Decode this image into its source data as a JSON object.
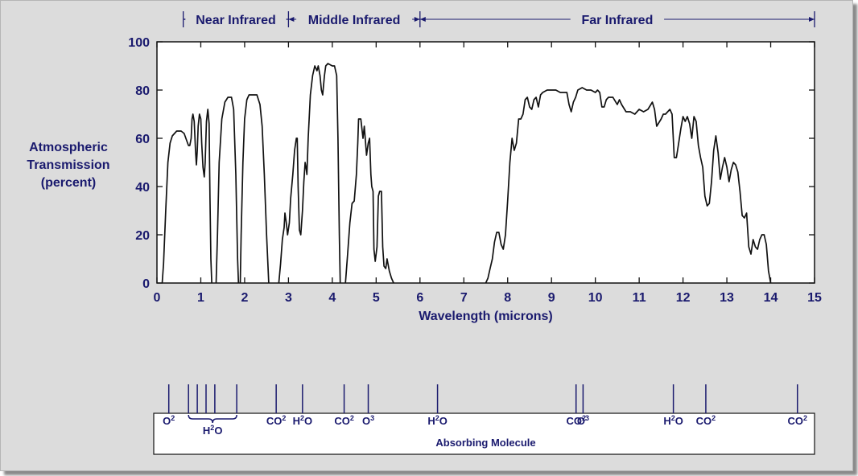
{
  "chart_data": {
    "type": "line",
    "xlabel": "Wavelength (microns)",
    "ylabel_lines": [
      "Atmospheric",
      "Transmission",
      "(percent)"
    ],
    "xlim": [
      0,
      15
    ],
    "ylim": [
      0,
      100
    ],
    "xticks": [
      "0",
      "1",
      "2",
      "3",
      "4",
      "5",
      "6",
      "7",
      "8",
      "9",
      "10",
      "11",
      "12",
      "13",
      "14",
      "15"
    ],
    "yticks": [
      "0",
      "20",
      "40",
      "60",
      "80",
      "100"
    ],
    "grid": false,
    "regions": [
      {
        "label": "Near Infrared",
        "from": 0.6,
        "to": 3.0
      },
      {
        "label": "Middle Infrared",
        "from": 3.0,
        "to": 6.0
      },
      {
        "label": "Far Infrared",
        "from": 6.0,
        "to": 15.0
      }
    ],
    "series": [
      {
        "segments": [
          [
            [
              0.12,
              0
            ],
            [
              0.15,
              8
            ],
            [
              0.2,
              30
            ],
            [
              0.25,
              50
            ],
            [
              0.3,
              58
            ],
            [
              0.35,
              61
            ],
            [
              0.45,
              63
            ],
            [
              0.55,
              63
            ],
            [
              0.62,
              62
            ],
            [
              0.68,
              59
            ],
            [
              0.72,
              57
            ],
            [
              0.75,
              57
            ],
            [
              0.78,
              60
            ],
            [
              0.8,
              68
            ],
            [
              0.82,
              70
            ],
            [
              0.85,
              67
            ],
            [
              0.88,
              55
            ],
            [
              0.9,
              49
            ],
            [
              0.92,
              55
            ],
            [
              0.94,
              65
            ],
            [
              0.97,
              70
            ],
            [
              1.0,
              68
            ],
            [
              1.02,
              58
            ],
            [
              1.05,
              48
            ],
            [
              1.08,
              44
            ],
            [
              1.1,
              50
            ],
            [
              1.13,
              67
            ],
            [
              1.16,
              72
            ],
            [
              1.19,
              66
            ],
            [
              1.21,
              35
            ],
            [
              1.23,
              10
            ],
            [
              1.25,
              0
            ]
          ],
          [
            [
              1.35,
              0
            ],
            [
              1.38,
              20
            ],
            [
              1.42,
              50
            ],
            [
              1.48,
              68
            ],
            [
              1.55,
              75
            ],
            [
              1.62,
              77
            ],
            [
              1.7,
              77
            ],
            [
              1.75,
              72
            ],
            [
              1.8,
              45
            ],
            [
              1.84,
              10
            ],
            [
              1.86,
              0
            ]
          ],
          [
            [
              1.9,
              0
            ],
            [
              1.92,
              20
            ],
            [
              1.96,
              50
            ],
            [
              2.0,
              68
            ],
            [
              2.05,
              76
            ],
            [
              2.1,
              78
            ],
            [
              2.2,
              78
            ],
            [
              2.28,
              78
            ],
            [
              2.35,
              74
            ],
            [
              2.4,
              65
            ],
            [
              2.45,
              45
            ],
            [
              2.5,
              20
            ],
            [
              2.55,
              0
            ]
          ],
          [
            [
              2.78,
              0
            ],
            [
              2.82,
              8
            ],
            [
              2.86,
              18
            ],
            [
              2.9,
              23
            ],
            [
              2.92,
              29
            ],
            [
              2.95,
              25
            ],
            [
              2.98,
              20
            ],
            [
              3.02,
              25
            ],
            [
              3.05,
              35
            ],
            [
              3.1,
              45
            ],
            [
              3.14,
              55
            ],
            [
              3.18,
              60
            ],
            [
              3.2,
              60
            ],
            [
              3.22,
              40
            ],
            [
              3.25,
              22
            ],
            [
              3.28,
              20
            ],
            [
              3.32,
              30
            ],
            [
              3.35,
              42
            ],
            [
              3.38,
              50
            ],
            [
              3.4,
              48
            ],
            [
              3.42,
              45
            ],
            [
              3.45,
              60
            ],
            [
              3.5,
              78
            ],
            [
              3.55,
              86
            ],
            [
              3.6,
              90
            ],
            [
              3.65,
              88
            ],
            [
              3.68,
              90
            ],
            [
              3.72,
              86
            ],
            [
              3.75,
              80
            ],
            [
              3.78,
              78
            ],
            [
              3.82,
              86
            ],
            [
              3.85,
              90
            ],
            [
              3.9,
              91
            ],
            [
              4.0,
              90
            ],
            [
              4.05,
              90
            ],
            [
              4.1,
              86
            ],
            [
              4.13,
              60
            ],
            [
              4.16,
              20
            ],
            [
              4.18,
              0
            ]
          ],
          [
            [
              4.3,
              0
            ],
            [
              4.35,
              12
            ],
            [
              4.4,
              25
            ],
            [
              4.45,
              33
            ],
            [
              4.5,
              34
            ],
            [
              4.55,
              45
            ],
            [
              4.58,
              58
            ],
            [
              4.6,
              68
            ],
            [
              4.65,
              68
            ],
            [
              4.7,
              60
            ],
            [
              4.73,
              65
            ],
            [
              4.78,
              53
            ],
            [
              4.82,
              58
            ],
            [
              4.85,
              60
            ],
            [
              4.88,
              45
            ],
            [
              4.9,
              40
            ],
            [
              4.93,
              38
            ],
            [
              4.95,
              14
            ],
            [
              4.98,
              9
            ],
            [
              5.02,
              15
            ],
            [
              5.05,
              36
            ],
            [
              5.08,
              38
            ],
            [
              5.12,
              38
            ],
            [
              5.15,
              15
            ],
            [
              5.18,
              7
            ],
            [
              5.22,
              6
            ],
            [
              5.25,
              10
            ],
            [
              5.3,
              5
            ],
            [
              5.35,
              2
            ],
            [
              5.4,
              0
            ]
          ],
          [
            [
              7.5,
              0
            ],
            [
              7.55,
              2
            ],
            [
              7.6,
              6
            ],
            [
              7.65,
              10
            ],
            [
              7.7,
              17
            ],
            [
              7.75,
              21
            ],
            [
              7.8,
              21
            ],
            [
              7.85,
              16
            ],
            [
              7.9,
              14
            ],
            [
              7.95,
              20
            ],
            [
              8.0,
              34
            ],
            [
              8.05,
              50
            ],
            [
              8.1,
              60
            ],
            [
              8.15,
              55
            ],
            [
              8.2,
              58
            ],
            [
              8.25,
              68
            ],
            [
              8.3,
              68
            ],
            [
              8.35,
              70
            ],
            [
              8.4,
              76
            ],
            [
              8.45,
              77
            ],
            [
              8.5,
              73
            ],
            [
              8.55,
              72
            ],
            [
              8.6,
              76
            ],
            [
              8.65,
              77
            ],
            [
              8.7,
              73
            ],
            [
              8.75,
              78
            ],
            [
              8.8,
              79
            ],
            [
              8.9,
              80
            ],
            [
              9.0,
              80
            ],
            [
              9.1,
              80
            ],
            [
              9.2,
              79
            ],
            [
              9.3,
              79
            ],
            [
              9.35,
              79
            ],
            [
              9.4,
              74
            ],
            [
              9.45,
              71
            ],
            [
              9.5,
              75
            ],
            [
              9.55,
              77
            ],
            [
              9.6,
              80
            ],
            [
              9.7,
              81
            ],
            [
              9.8,
              80
            ],
            [
              9.9,
              80
            ],
            [
              10.0,
              79
            ],
            [
              10.05,
              80
            ],
            [
              10.1,
              79
            ],
            [
              10.15,
              73
            ],
            [
              10.2,
              73
            ],
            [
              10.25,
              76
            ],
            [
              10.3,
              77
            ],
            [
              10.4,
              77
            ],
            [
              10.5,
              74
            ],
            [
              10.55,
              76
            ],
            [
              10.6,
              74
            ],
            [
              10.7,
              71
            ],
            [
              10.8,
              71
            ],
            [
              10.9,
              70
            ],
            [
              11.0,
              72
            ],
            [
              11.1,
              71
            ],
            [
              11.2,
              72
            ],
            [
              11.3,
              75
            ],
            [
              11.35,
              72
            ],
            [
              11.4,
              65
            ],
            [
              11.5,
              68
            ],
            [
              11.55,
              70
            ],
            [
              11.6,
              70
            ],
            [
              11.7,
              72
            ],
            [
              11.75,
              70
            ],
            [
              11.8,
              52
            ],
            [
              11.85,
              52
            ],
            [
              11.9,
              58
            ],
            [
              11.95,
              64
            ],
            [
              12.0,
              69
            ],
            [
              12.05,
              67
            ],
            [
              12.1,
              69
            ],
            [
              12.15,
              66
            ],
            [
              12.2,
              60
            ],
            [
              12.25,
              69
            ],
            [
              12.3,
              67
            ],
            [
              12.35,
              57
            ],
            [
              12.4,
              52
            ],
            [
              12.45,
              48
            ],
            [
              12.5,
              36
            ],
            [
              12.55,
              32
            ],
            [
              12.6,
              33
            ],
            [
              12.65,
              42
            ],
            [
              12.7,
              55
            ],
            [
              12.75,
              61
            ],
            [
              12.8,
              54
            ],
            [
              12.85,
              43
            ],
            [
              12.9,
              48
            ],
            [
              12.95,
              52
            ],
            [
              13.0,
              48
            ],
            [
              13.05,
              42
            ],
            [
              13.1,
              47
            ],
            [
              13.15,
              50
            ],
            [
              13.2,
              49
            ],
            [
              13.25,
              46
            ],
            [
              13.3,
              38
            ],
            [
              13.35,
              28
            ],
            [
              13.4,
              27
            ],
            [
              13.45,
              29
            ],
            [
              13.5,
              15
            ],
            [
              13.55,
              12
            ],
            [
              13.6,
              18
            ],
            [
              13.65,
              15
            ],
            [
              13.7,
              14
            ],
            [
              13.75,
              18
            ],
            [
              13.8,
              20
            ],
            [
              13.85,
              20
            ],
            [
              13.9,
              16
            ],
            [
              13.95,
              5
            ],
            [
              14.0,
              0
            ]
          ]
        ]
      }
    ]
  },
  "absorbing_molecules": {
    "caption": "Absorbing Molecule",
    "ticks_x": [
      0.27,
      0.72,
      0.92,
      1.12,
      1.32,
      1.82,
      2.72,
      3.32,
      4.27,
      4.82,
      6.4,
      9.56,
      9.72,
      11.78,
      12.52,
      14.61
    ],
    "labels": [
      {
        "base": "O",
        "sub": "2",
        "x": 0.27
      },
      {
        "base": "CO",
        "sub": "2",
        "x": 2.72
      },
      {
        "base": "H",
        "sub": "2",
        "suffix": "O",
        "x": 3.32
      },
      {
        "base": "CO",
        "sub": "2",
        "x": 4.27
      },
      {
        "base": "O",
        "sub": "3",
        "x": 4.82
      },
      {
        "base": "H",
        "sub": "2",
        "suffix": "O",
        "x": 6.4
      },
      {
        "base": "CO",
        "sub": "2",
        "x": 9.56
      },
      {
        "base": "O",
        "sub": "3",
        "x": 9.72
      },
      {
        "base": "H",
        "sub": "2",
        "suffix": "O",
        "x": 11.78
      },
      {
        "base": "CO",
        "sub": "2",
        "x": 12.52
      },
      {
        "base": "CO",
        "sub": "2",
        "x": 14.61
      }
    ],
    "group": {
      "base": "H",
      "sub": "2",
      "suffix": "O",
      "from": 0.72,
      "to": 1.82
    }
  },
  "colors": {
    "label": "#1a1a6e",
    "line": "#111111",
    "background": "#dcdcdc"
  }
}
